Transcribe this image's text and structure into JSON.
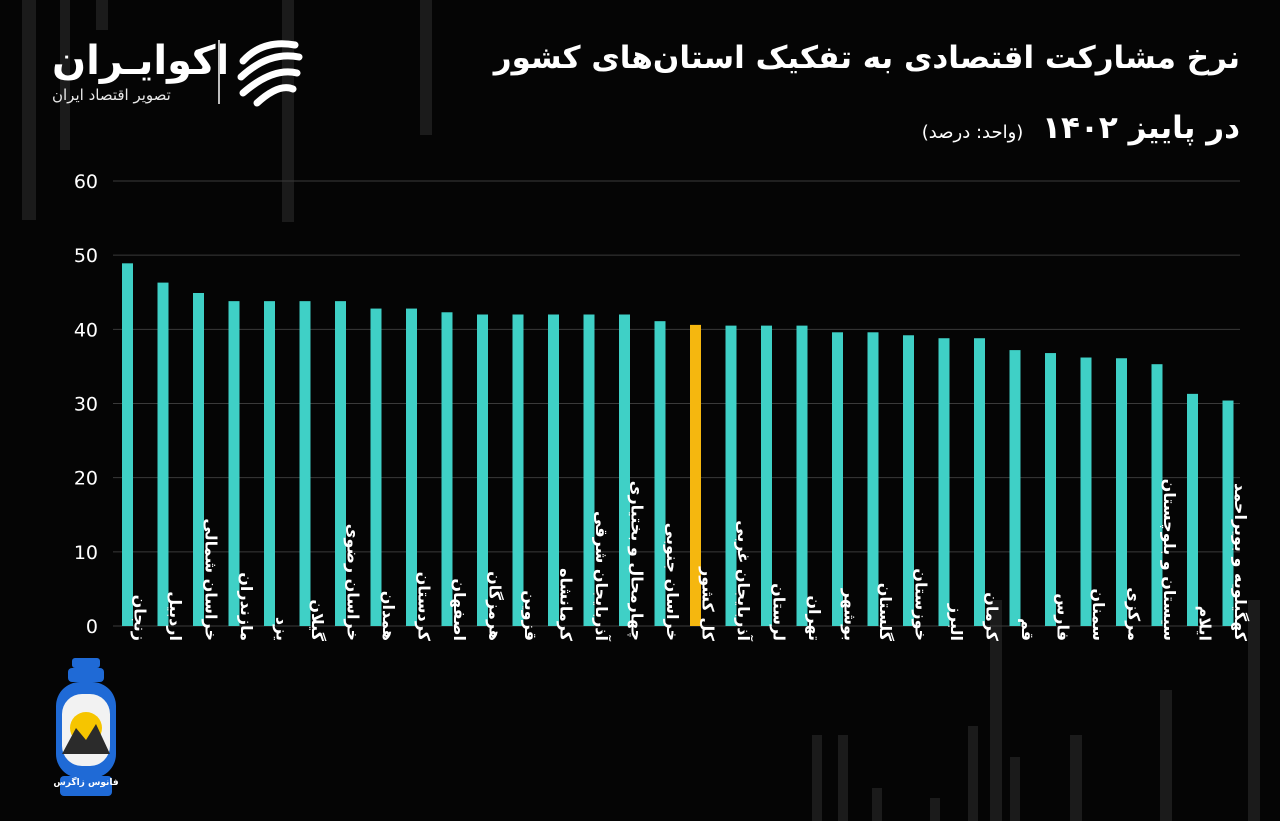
{
  "header": {
    "title_line1": "نرخ مشارکت اقتصادی به تفکیک استان‌های کشور",
    "title_line2": "در پاییز ۱۴۰۲",
    "unit": "(واحد: درصد)"
  },
  "brand": {
    "name": "اکوایـران",
    "tagline": "تصویر اقتصاد ایران"
  },
  "watermark": {
    "caption": "فانوس زاگرس"
  },
  "colors": {
    "bar": "#3fd0c6",
    "highlight": "#f5b70f",
    "grid": "#3a3a3a",
    "background": "#050505"
  },
  "chart_data": {
    "type": "bar",
    "title": "نرخ مشارکت اقتصادی به تفکیک استان‌های کشور در پاییز ۱۴۰۲",
    "ylabel": "درصد",
    "ylim": [
      0,
      60
    ],
    "yticks": [
      0,
      10,
      20,
      30,
      40,
      50,
      60
    ],
    "ytick_labels": [
      "0",
      "10",
      "20",
      "30",
      "40",
      "50",
      "60"
    ],
    "grid": true,
    "highlight_category": "کل کشور",
    "categories": [
      "زنجان",
      "اردبیل",
      "خراسان شمالی",
      "مازندران",
      "یزد",
      "گیلان",
      "خراسان رضوی",
      "همدان",
      "کردستان",
      "اصفهان",
      "هرمزگان",
      "قزوین",
      "کرمانشاه",
      "آذربایجان شرقی",
      "چهارمحال و بختیاری",
      "خراسان جنوبی",
      "کل کشور",
      "آذربایجان غربی",
      "لرستان",
      "تهران",
      "بوشهر",
      "گلستان",
      "خوزستان",
      "البرز",
      "کرمان",
      "قم",
      "فارس",
      "سمنان",
      "مرکزی",
      "سیستان و بلوچستان",
      "ایلام",
      "کهگیلویه و بویراحمد"
    ],
    "values": [
      48.9,
      46.3,
      44.9,
      43.8,
      43.8,
      43.8,
      43.8,
      42.8,
      42.8,
      42.3,
      42.0,
      42.0,
      42.0,
      42.0,
      42.0,
      41.1,
      40.6,
      40.5,
      40.5,
      40.5,
      39.6,
      39.6,
      39.2,
      38.8,
      38.8,
      37.2,
      36.8,
      36.2,
      36.1,
      35.3,
      31.3,
      30.4
    ]
  }
}
